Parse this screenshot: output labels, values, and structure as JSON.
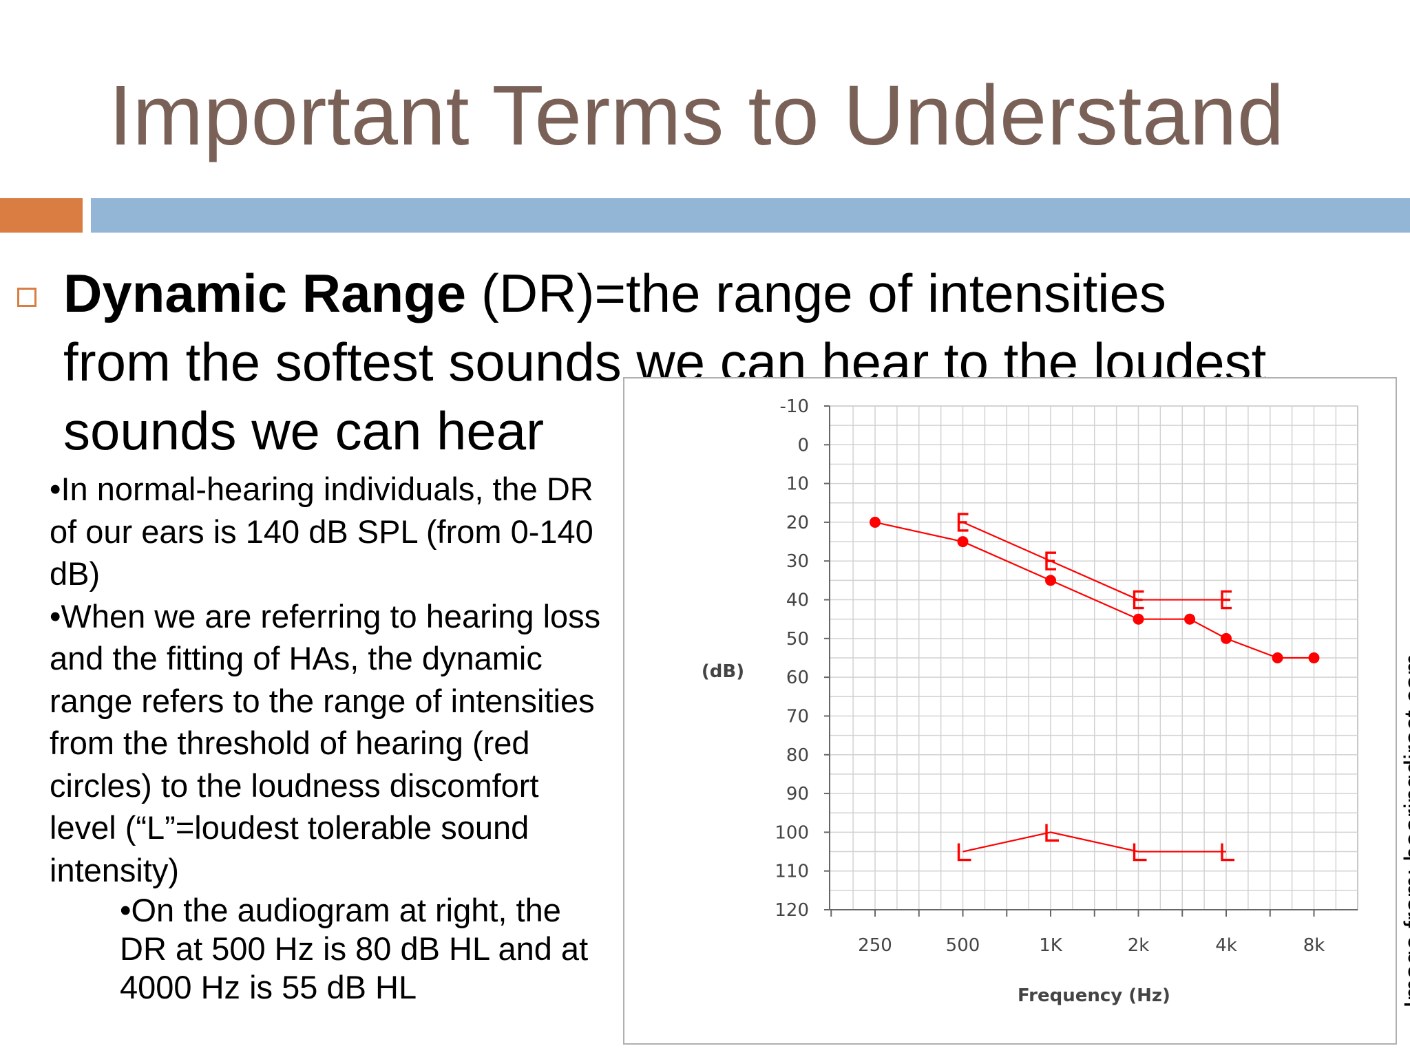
{
  "slide": {
    "title": "Important Terms to Understand",
    "accent_colors": {
      "orange": "#d97d43",
      "blue": "#93b5d6",
      "title": "#7a6158"
    },
    "heading": {
      "term": "Dynamic Range",
      "definition": " (DR)=the range of intensities from the softest sounds we can hear to the loudest sounds we can hear"
    },
    "bullets": [
      "•In normal-hearing individuals, the DR of our ears is 140 dB SPL (from 0-140 dB)",
      "•When we are referring to hearing loss and the fitting of HAs, the dynamic range refers to the range of intensities from the threshold of hearing (red circles) to the loudness discomfort level (“L”=loudest tolerable sound intensity)"
    ],
    "sub_bullet": "•On the audiogram at right, the DR at 500 Hz is 80 dB HL and at 4000 Hz is 55 dB HL",
    "image_credit": "Image from: hearingdirect.com"
  },
  "chart_data": {
    "type": "line",
    "ylabel": "(dB)",
    "xlabel": "Frequency (Hz)",
    "x_tick_labels": [
      "250",
      "500",
      "1K",
      "2k",
      "4k",
      "8k"
    ],
    "y_ticks": [
      -10,
      0,
      10,
      20,
      30,
      40,
      50,
      60,
      70,
      80,
      90,
      100,
      110,
      120
    ],
    "ylim": [
      -10,
      120
    ],
    "y_inverted": true,
    "x_scale": "log2 (octaves, with half-octave gridlines)",
    "grid": true,
    "color": "#ff0000",
    "series": [
      {
        "marker": "circle",
        "points": [
          {
            "x": 250,
            "y": 20
          },
          {
            "x": 500,
            "y": 25
          },
          {
            "x": 1000,
            "y": 35
          },
          {
            "x": 2000,
            "y": 45
          },
          {
            "x": 3000,
            "y": 45
          },
          {
            "x": 4000,
            "y": 50
          },
          {
            "x": 6000,
            "y": 55
          },
          {
            "x": 8000,
            "y": 55
          }
        ]
      },
      {
        "marker": "E",
        "points": [
          {
            "x": 500,
            "y": 20
          },
          {
            "x": 1000,
            "y": 30
          },
          {
            "x": 2000,
            "y": 40
          },
          {
            "x": 4000,
            "y": 40
          }
        ]
      },
      {
        "marker": "L",
        "points": [
          {
            "x": 500,
            "y": 105
          },
          {
            "x": 1000,
            "y": 100
          },
          {
            "x": 2000,
            "y": 105
          },
          {
            "x": 4000,
            "y": 105
          }
        ]
      }
    ]
  }
}
